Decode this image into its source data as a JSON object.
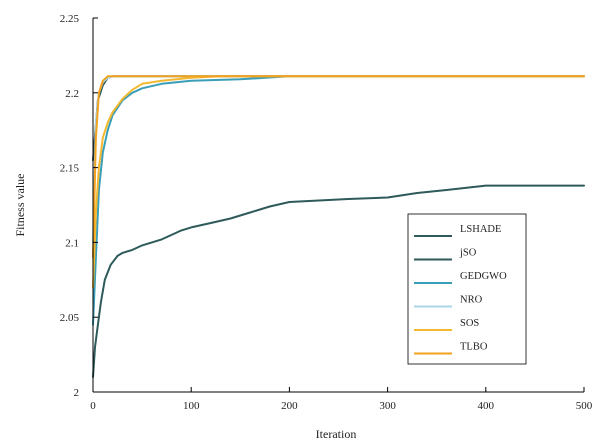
{
  "chart_data": {
    "type": "line",
    "title": "",
    "xlabel": "Iteration",
    "ylabel": "Fitness  value",
    "xlim": [
      0,
      500
    ],
    "ylim": [
      2,
      2.25
    ],
    "xticks": [
      0,
      100,
      200,
      300,
      400,
      500
    ],
    "yticks": [
      2,
      2.05,
      2.1,
      2.15,
      2.2,
      2.25
    ],
    "ytick_labels": [
      "2",
      "2.05",
      "2.1",
      "2.15",
      "2.2",
      "2.25"
    ],
    "grid": false,
    "legend_position": "right",
    "series": [
      {
        "name": "LSHADE",
        "color": "#2E5A5A",
        "x": [
          0,
          5,
          10,
          15,
          20,
          30,
          50,
          70,
          100,
          150,
          200,
          250,
          300,
          400,
          500
        ],
        "y": [
          2.155,
          2.195,
          2.205,
          2.21,
          2.211,
          2.211,
          2.211,
          2.211,
          2.211,
          2.211,
          2.211,
          2.211,
          2.211,
          2.211,
          2.211
        ]
      },
      {
        "name": "jSO",
        "color": "#2E5A5A",
        "x": [
          0,
          2,
          5,
          8,
          12,
          18,
          25,
          30,
          40,
          50,
          60,
          70,
          80,
          90,
          100,
          120,
          140,
          160,
          180,
          200,
          230,
          260,
          300,
          330,
          360,
          400,
          450,
          500
        ],
        "y": [
          2.01,
          2.03,
          2.045,
          2.06,
          2.075,
          2.085,
          2.091,
          2.093,
          2.095,
          2.098,
          2.1,
          2.102,
          2.105,
          2.108,
          2.11,
          2.113,
          2.116,
          2.12,
          2.124,
          2.127,
          2.128,
          2.129,
          2.13,
          2.133,
          2.135,
          2.138,
          2.138,
          2.138
        ]
      },
      {
        "name": "GEDGWO",
        "color": "#3A9EB8",
        "x": [
          0,
          3,
          6,
          10,
          15,
          20,
          30,
          40,
          50,
          70,
          100,
          150,
          200,
          300,
          400,
          500
        ],
        "y": [
          2.045,
          2.09,
          2.135,
          2.16,
          2.175,
          2.185,
          2.195,
          2.2,
          2.203,
          2.206,
          2.208,
          2.209,
          2.211,
          2.211,
          2.211,
          2.211
        ]
      },
      {
        "name": "NRO",
        "color": "#A8D5E8",
        "x": [
          0,
          3,
          6,
          10,
          15,
          20,
          30,
          50,
          100,
          200,
          500
        ],
        "y": [
          2.1,
          2.18,
          2.2,
          2.207,
          2.21,
          2.211,
          2.211,
          2.211,
          2.211,
          2.211,
          2.211
        ]
      },
      {
        "name": "SOS",
        "color": "#F2B830",
        "x": [
          0,
          3,
          6,
          10,
          15,
          20,
          30,
          40,
          50,
          70,
          100,
          130,
          160,
          200,
          300,
          500
        ],
        "y": [
          2.07,
          2.12,
          2.15,
          2.17,
          2.18,
          2.187,
          2.196,
          2.202,
          2.206,
          2.208,
          2.21,
          2.211,
          2.211,
          2.211,
          2.211,
          2.211
        ]
      },
      {
        "name": "TLBO",
        "color": "#F2A21E",
        "x": [
          0,
          3,
          6,
          10,
          15,
          20,
          30,
          50,
          100,
          200,
          500
        ],
        "y": [
          2.09,
          2.17,
          2.2,
          2.208,
          2.211,
          2.211,
          2.211,
          2.211,
          2.211,
          2.211,
          2.211
        ]
      }
    ]
  }
}
